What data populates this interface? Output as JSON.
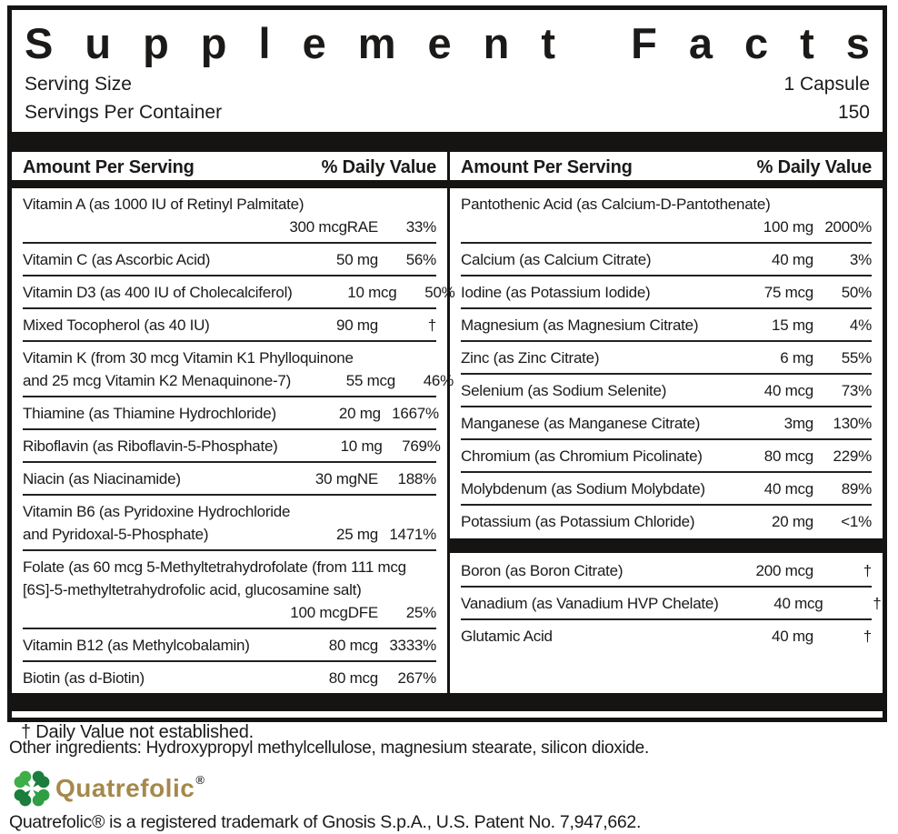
{
  "header": {
    "title": "Supplement Facts",
    "serving_size_label": "Serving Size",
    "serving_size_value": "1 Capsule",
    "servings_per_container_label": "Servings Per Container",
    "servings_per_container_value": "150"
  },
  "columns": [
    {
      "header_amount": "Amount Per Serving",
      "header_dv": "% Daily Value",
      "rows": [
        {
          "lines": [
            {
              "n": "Vitamin A (as 1000 IU of Retinyl Palmitate)",
              "a": "",
              "d": ""
            },
            {
              "n": "",
              "a": "300 mcgRAE",
              "d": "33%"
            }
          ],
          "sep": "line"
        },
        {
          "lines": [
            {
              "n": "Vitamin C (as Ascorbic Acid)",
              "a": "50 mg",
              "d": "56%"
            }
          ],
          "sep": "line"
        },
        {
          "lines": [
            {
              "n": "Vitamin D3 (as 400 IU of Cholecalciferol)",
              "a": "10 mcg",
              "d": "50%"
            }
          ],
          "sep": "line"
        },
        {
          "lines": [
            {
              "n": "Mixed Tocopherol (as 40 IU)",
              "a": "90 mg",
              "d": "†"
            }
          ],
          "sep": "line"
        },
        {
          "lines": [
            {
              "n": "Vitamin K (from 30 mcg Vitamin K1 Phylloquinone",
              "a": "",
              "d": ""
            },
            {
              "n": "and 25 mcg Vitamin K2 Menaquinone-7)",
              "a": "55 mcg",
              "d": "46%"
            }
          ],
          "sep": "line"
        },
        {
          "lines": [
            {
              "n": "Thiamine (as Thiamine Hydrochloride)",
              "a": "20 mg",
              "d": "1667%"
            }
          ],
          "sep": "line"
        },
        {
          "lines": [
            {
              "n": "Riboflavin (as Riboflavin-5-Phosphate)",
              "a": "10 mg",
              "d": "769%"
            }
          ],
          "sep": "line"
        },
        {
          "lines": [
            {
              "n": "Niacin (as Niacinamide)",
              "a": "30 mgNE",
              "d": "188%"
            }
          ],
          "sep": "line"
        },
        {
          "lines": [
            {
              "n": "Vitamin B6 (as Pyridoxine Hydrochloride",
              "a": "",
              "d": ""
            },
            {
              "n": "and Pyridoxal-5-Phosphate)",
              "a": "25 mg",
              "d": "1471%"
            }
          ],
          "sep": "line"
        },
        {
          "lines": [
            {
              "n": "Folate (as 60 mcg 5-Methyltetrahydrofolate (from 111 mcg",
              "a": "",
              "d": ""
            },
            {
              "n": "[6S]-5-methyltetrahydrofolic acid, glucosamine salt)",
              "a": "",
              "d": ""
            },
            {
              "n": "",
              "a": "100 mcgDFE",
              "d": "25%"
            }
          ],
          "sep": "line"
        },
        {
          "lines": [
            {
              "n": "Vitamin B12 (as Methylcobalamin)",
              "a": "80 mcg",
              "d": "3333%"
            }
          ],
          "sep": "line"
        },
        {
          "lines": [
            {
              "n": "Biotin (as d-Biotin)",
              "a": "80 mcg",
              "d": "267%"
            }
          ],
          "sep": "none"
        }
      ]
    },
    {
      "header_amount": "Amount Per Serving",
      "header_dv": "% Daily Value",
      "rows": [
        {
          "lines": [
            {
              "n": "Pantothenic Acid (as Calcium-D-Pantothenate)",
              "a": "",
              "d": ""
            },
            {
              "n": "",
              "a": "100 mg",
              "d": "2000%"
            }
          ],
          "sep": "line"
        },
        {
          "lines": [
            {
              "n": "Calcium (as Calcium Citrate)",
              "a": "40 mg",
              "d": "3%"
            }
          ],
          "sep": "line"
        },
        {
          "lines": [
            {
              "n": "Iodine (as Potassium Iodide)",
              "a": "75 mcg",
              "d": "50%"
            }
          ],
          "sep": "line"
        },
        {
          "lines": [
            {
              "n": "Magnesium (as Magnesium Citrate)",
              "a": "15 mg",
              "d": "4%"
            }
          ],
          "sep": "line"
        },
        {
          "lines": [
            {
              "n": "Zinc (as Zinc Citrate)",
              "a": "6 mg",
              "d": "55%"
            }
          ],
          "sep": "line"
        },
        {
          "lines": [
            {
              "n": "Selenium (as Sodium Selenite)",
              "a": "40 mcg",
              "d": "73%"
            }
          ],
          "sep": "line"
        },
        {
          "lines": [
            {
              "n": "Manganese (as Manganese Citrate)",
              "a": "3mg",
              "d": "130%"
            }
          ],
          "sep": "line"
        },
        {
          "lines": [
            {
              "n": "Chromium (as Chromium Picolinate)",
              "a": "80 mcg",
              "d": "229%"
            }
          ],
          "sep": "line"
        },
        {
          "lines": [
            {
              "n": "Molybdenum (as Sodium Molybdate)",
              "a": "40 mcg",
              "d": "89%"
            }
          ],
          "sep": "line"
        },
        {
          "lines": [
            {
              "n": "Potassium (as Potassium Chloride)",
              "a": "20 mg",
              "d": "<1%"
            }
          ],
          "sep": "bar"
        },
        {
          "lines": [
            {
              "n": "Boron (as Boron Citrate)",
              "a": "200 mcg",
              "d": "†"
            }
          ],
          "sep": "line"
        },
        {
          "lines": [
            {
              "n": "Vanadium (as Vanadium HVP Chelate)",
              "a": "40 mcg",
              "d": "†"
            }
          ],
          "sep": "line"
        },
        {
          "lines": [
            {
              "n": "Glutamic Acid",
              "a": "40 mg",
              "d": "†"
            }
          ],
          "sep": "none"
        }
      ]
    }
  ],
  "footnote": "† Daily Value not established.",
  "other_ingredients": "Other ingredients: Hydroxypropyl methylcellulose, magnesium stearate, silicon dioxide.",
  "logo": {
    "text": "Quatrefolic",
    "reg": "®"
  },
  "trademark": "Quatrefolic® is a registered trademark of Gnosis S.p.A., U.S. Patent No. 7,947,662.",
  "colors": {
    "text": "#1c1a19",
    "bar": "#161413",
    "logo_gold": "#a5894b",
    "clover_green_bright": "#3fae49",
    "clover_green_mid": "#2f9e44",
    "clover_green_dark": "#1b7e3c"
  }
}
